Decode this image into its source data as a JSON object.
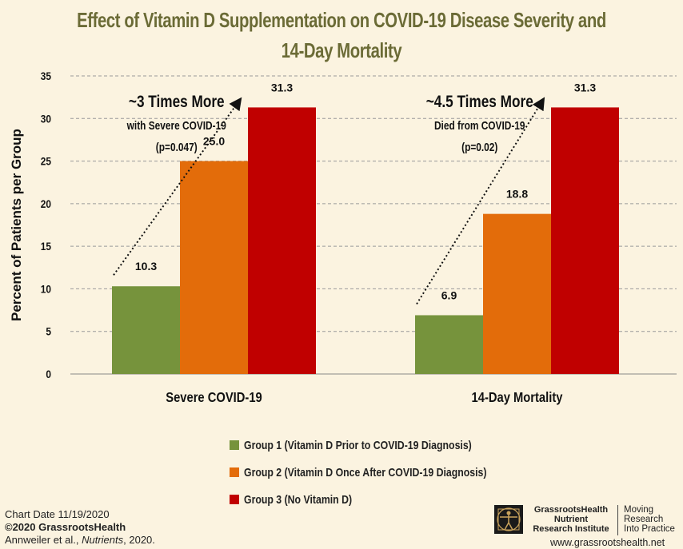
{
  "chart_data": {
    "type": "bar",
    "title": "Effect of Vitamin D Supplementation on COVID-19 Disease Severity and 14-Day Mortality",
    "title_lines": [
      "Effect of Vitamin D Supplementation on COVID-19 Disease Severity and",
      "14-Day Mortality"
    ],
    "ylabel": "Percent of Patients per Group",
    "xlabel": "",
    "ylim": [
      0,
      35
    ],
    "yticks": [
      0,
      5,
      10,
      15,
      20,
      25,
      30,
      35
    ],
    "grid": true,
    "categories": [
      "Severe COVID-19",
      "14-Day Mortality"
    ],
    "series": [
      {
        "name": "Group 1 (Vitamin D Prior to COVID-19 Diagnosis)",
        "color": "#76933c",
        "values": [
          10.3,
          6.9
        ],
        "labels": [
          "10.3",
          "6.9"
        ]
      },
      {
        "name": "Group 2 (Vitamin D Once After COVID-19 Diagnosis)",
        "color": "#e36c0a",
        "values": [
          25.0,
          18.8
        ],
        "labels": [
          "25.0",
          "18.8"
        ]
      },
      {
        "name": "Group 3 (No Vitamin D)",
        "color": "#c00000",
        "values": [
          31.3,
          31.3
        ],
        "labels": [
          "31.3",
          "31.3"
        ]
      }
    ],
    "annotations": [
      {
        "headline": "~3 Times More",
        "line2": "with Severe COVID-19",
        "line3": "(p=0.047)"
      },
      {
        "headline": "~4.5 Times More",
        "line2": "Died from COVID-19",
        "line3": "(p=0.02)"
      }
    ],
    "legend_position": "bottom"
  },
  "footer": {
    "chart_date": "Chart Date 11/19/2020",
    "copyright": "©2020 GrassrootsHealth",
    "citation_authors": "Annweiler et al., ",
    "citation_journal": "Nutrients",
    "citation_year": ", 2020."
  },
  "branding": {
    "org_line1": "GrassrootsHealth",
    "org_line2": "Nutrient",
    "org_line3": "Research Institute",
    "tagline_line1": "Moving",
    "tagline_line2": "Research",
    "tagline_line3": "Into Practice",
    "website": "www.grassrootshealth.net",
    "logo_icon": "vitruvian-man-icon"
  }
}
